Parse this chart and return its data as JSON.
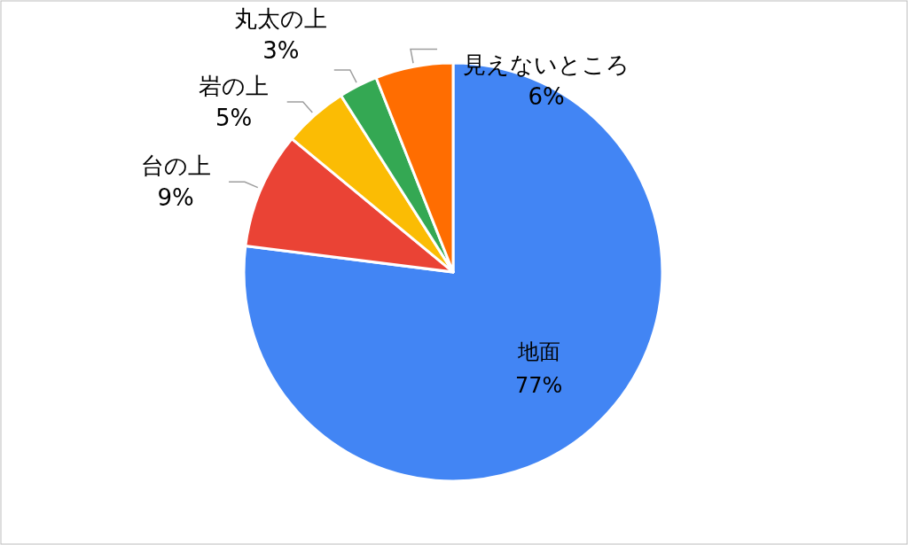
{
  "chart_data": {
    "type": "pie",
    "categories": [
      "地面",
      "台の上",
      "岩の上",
      "丸太の上",
      "見えないところ"
    ],
    "values": [
      77,
      9,
      5,
      3,
      6
    ],
    "colors": [
      "#4285f4",
      "#ea4335",
      "#fbbc04",
      "#34a853",
      "#ff6d01"
    ],
    "value_labels": [
      "77%",
      "9%",
      "5%",
      "3%",
      "6%"
    ]
  }
}
